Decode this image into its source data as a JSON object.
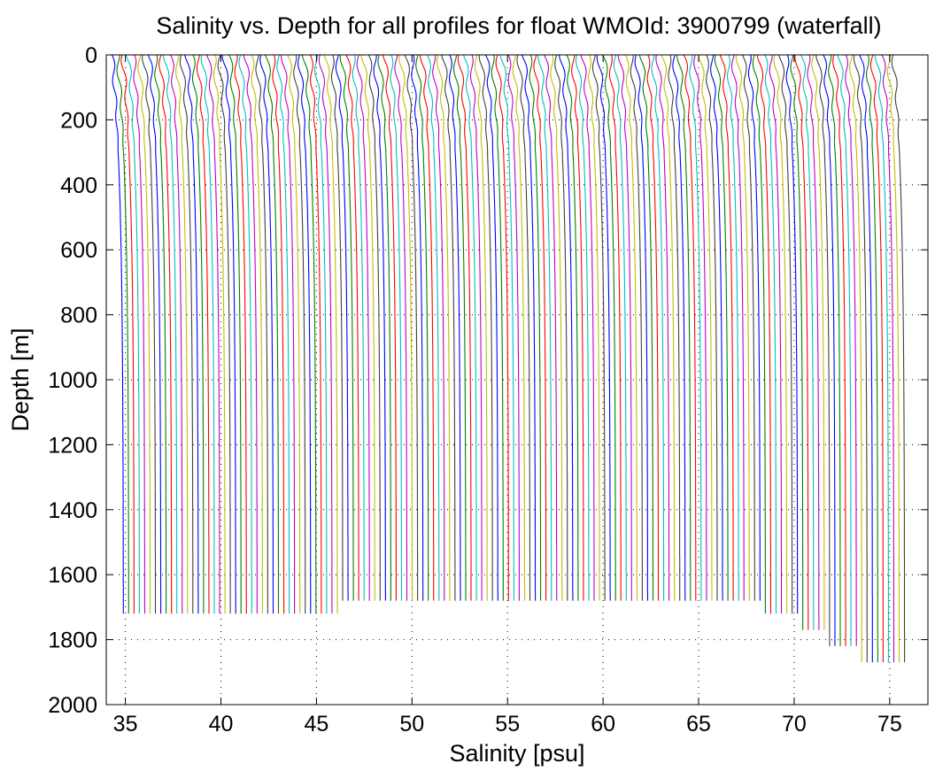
{
  "chart_data": {
    "type": "line",
    "title": "Salinity vs. Depth for all profiles for float WMOId: 3900799 (waterfall)",
    "xlabel": "Salinity [psu]",
    "ylabel": "Depth [m]",
    "xlim": [
      34,
      77
    ],
    "ylim": [
      0,
      2000
    ],
    "y_reversed": true,
    "xticks": [
      35,
      40,
      45,
      50,
      55,
      60,
      65,
      70,
      75
    ],
    "yticks": [
      0,
      200,
      400,
      600,
      800,
      1000,
      1200,
      1400,
      1600,
      1800,
      2000
    ],
    "grid": "dotted",
    "color_cycle": [
      "#0000ff",
      "#008000",
      "#ff0000",
      "#00bfbf",
      "#bf00bf",
      "#bfbf00",
      "#404040"
    ],
    "waterfall": {
      "profile_count": 147,
      "offset_per_profile_psu": 0.28,
      "base_salinity_psu": 34.9,
      "surface_freshening_psu": 0.6,
      "note_series": "Each profile is offset by a constant salinity step; profiles share the same shape."
    },
    "profile_max_depths": [
      {
        "from_profile": 0,
        "to_profile": 40,
        "max_depth_m": 1725
      },
      {
        "from_profile": 41,
        "to_profile": 119,
        "max_depth_m": 1680
      },
      {
        "from_profile": 120,
        "to_profile": 126,
        "max_depth_m": 1725
      },
      {
        "from_profile": 127,
        "to_profile": 131,
        "max_depth_m": 1775
      },
      {
        "from_profile": 132,
        "to_profile": 137,
        "max_depth_m": 1825
      },
      {
        "from_profile": 138,
        "to_profile": 146,
        "max_depth_m": 1875
      }
    ]
  }
}
